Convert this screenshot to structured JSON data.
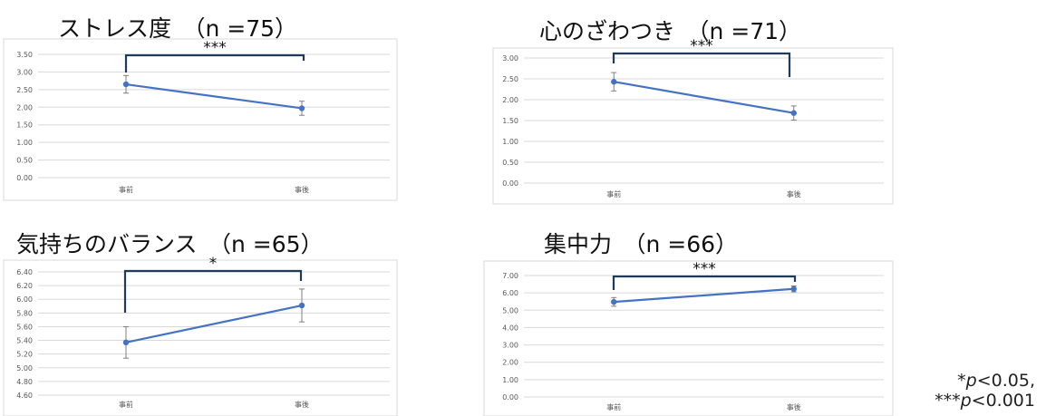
{
  "chart_data": [
    {
      "type": "line",
      "title": "ストレス度　（n =75）",
      "categories": [
        "事前",
        "事後"
      ],
      "series": [
        {
          "values": [
            2.65,
            1.97
          ],
          "error": [
            0.25,
            0.2
          ]
        }
      ],
      "ylim": [
        0,
        3.5
      ],
      "yticks": [
        "0.00",
        "0.50",
        "1.00",
        "1.50",
        "2.00",
        "2.50",
        "3.00",
        "3.50"
      ],
      "significance": "***",
      "accent": "#4472c4"
    },
    {
      "type": "line",
      "title": "心のざわつき　（n =71）",
      "categories": [
        "事前",
        "事後"
      ],
      "series": [
        {
          "values": [
            2.43,
            1.68
          ],
          "error": [
            0.22,
            0.17
          ]
        }
      ],
      "ylim": [
        0,
        3.0
      ],
      "yticks": [
        "0.00",
        "0.50",
        "1.00",
        "1.50",
        "2.00",
        "2.50",
        "3.00"
      ],
      "significance": "***",
      "accent": "#4472c4"
    },
    {
      "type": "line",
      "title": "気持ちのバランス　（n =65）",
      "categories": [
        "事前",
        "事後"
      ],
      "series": [
        {
          "values": [
            5.37,
            5.91
          ],
          "error": [
            0.23,
            0.24
          ]
        }
      ],
      "ylim": [
        4.6,
        6.4
      ],
      "yticks": [
        "4.60",
        "4.80",
        "5.00",
        "5.20",
        "5.40",
        "5.60",
        "5.80",
        "6.00",
        "6.20",
        "6.40"
      ],
      "significance": "*",
      "accent": "#4472c4"
    },
    {
      "type": "line",
      "title": "集中力　（n =66）",
      "categories": [
        "事前",
        "事後"
      ],
      "series": [
        {
          "values": [
            5.48,
            6.23
          ],
          "error": [
            0.25,
            0.17
          ]
        }
      ],
      "ylim": [
        0,
        7.0
      ],
      "yticks": [
        "0.00",
        "1.00",
        "2.00",
        "3.00",
        "4.00",
        "5.00",
        "6.00",
        "7.00"
      ],
      "significance": "***",
      "accent": "#4472c4"
    }
  ],
  "footnote": {
    "line1_prefix": "*",
    "line1_p": "p",
    "line1_rest": "<0.05,",
    "line2_prefix": "***",
    "line2_p": "p",
    "line2_rest": "<0.001"
  }
}
